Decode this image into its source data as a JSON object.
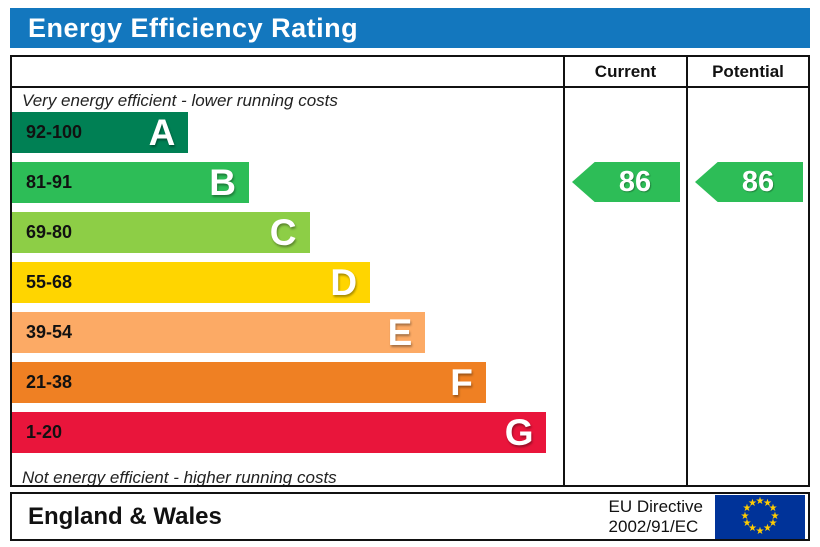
{
  "title": "Energy Efficiency Rating",
  "header": {
    "current_label": "Current",
    "potential_label": "Potential"
  },
  "captions": {
    "top": "Very energy efficient - lower running costs",
    "bottom": "Not energy efficient - higher running costs"
  },
  "bands": [
    {
      "letter": "A",
      "range": "92-100",
      "color": "#008054",
      "width_pct": 32
    },
    {
      "letter": "B",
      "range": "81-91",
      "color": "#2dbd57",
      "width_pct": 43
    },
    {
      "letter": "C",
      "range": "69-80",
      "color": "#8dce46",
      "width_pct": 54
    },
    {
      "letter": "D",
      "range": "55-68",
      "color": "#ffd500",
      "width_pct": 65
    },
    {
      "letter": "E",
      "range": "39-54",
      "color": "#fcaa65",
      "width_pct": 75
    },
    {
      "letter": "F",
      "range": "21-38",
      "color": "#ef8023",
      "width_pct": 86
    },
    {
      "letter": "G",
      "range": "1-20",
      "color": "#e9153b",
      "width_pct": 97
    }
  ],
  "ratings": {
    "current": {
      "value": "86",
      "band": "B",
      "band_index": 1,
      "color": "#2dbd57"
    },
    "potential": {
      "value": "86",
      "band": "B",
      "band_index": 1,
      "color": "#2dbd57"
    }
  },
  "footer": {
    "region": "England & Wales",
    "directive_line1": "EU Directive",
    "directive_line2": "2002/91/EC",
    "flag_icon": "eu-flag"
  },
  "colors": {
    "title_bar_blue": "#1377be",
    "eu_flag_blue": "#003399",
    "eu_star_yellow": "#ffcc00",
    "border_black": "#111111"
  },
  "chart_data": {
    "type": "bar",
    "orientation": "horizontal",
    "title": "Energy Efficiency Rating",
    "categories": [
      "A",
      "B",
      "C",
      "D",
      "E",
      "F",
      "G"
    ],
    "band_score_ranges": [
      "92-100",
      "81-91",
      "69-80",
      "55-68",
      "39-54",
      "21-38",
      "1-20"
    ],
    "values": [
      32,
      43,
      54,
      65,
      75,
      86,
      97
    ],
    "values_note": "bar lengths as percent of chart column width",
    "band_colors": [
      "#008054",
      "#2dbd57",
      "#8dce46",
      "#ffd500",
      "#fcaa65",
      "#ef8023",
      "#e9153b"
    ],
    "markers": [
      {
        "name": "Current",
        "value": 86,
        "band": "B",
        "color": "#2dbd57"
      },
      {
        "name": "Potential",
        "value": 86,
        "band": "B",
        "color": "#2dbd57"
      }
    ],
    "annotations": [
      "Very energy efficient - lower running costs",
      "Not energy efficient - higher running costs"
    ],
    "legend_position": "none",
    "grid": false,
    "footer": [
      "England & Wales",
      "EU Directive 2002/91/EC"
    ]
  }
}
